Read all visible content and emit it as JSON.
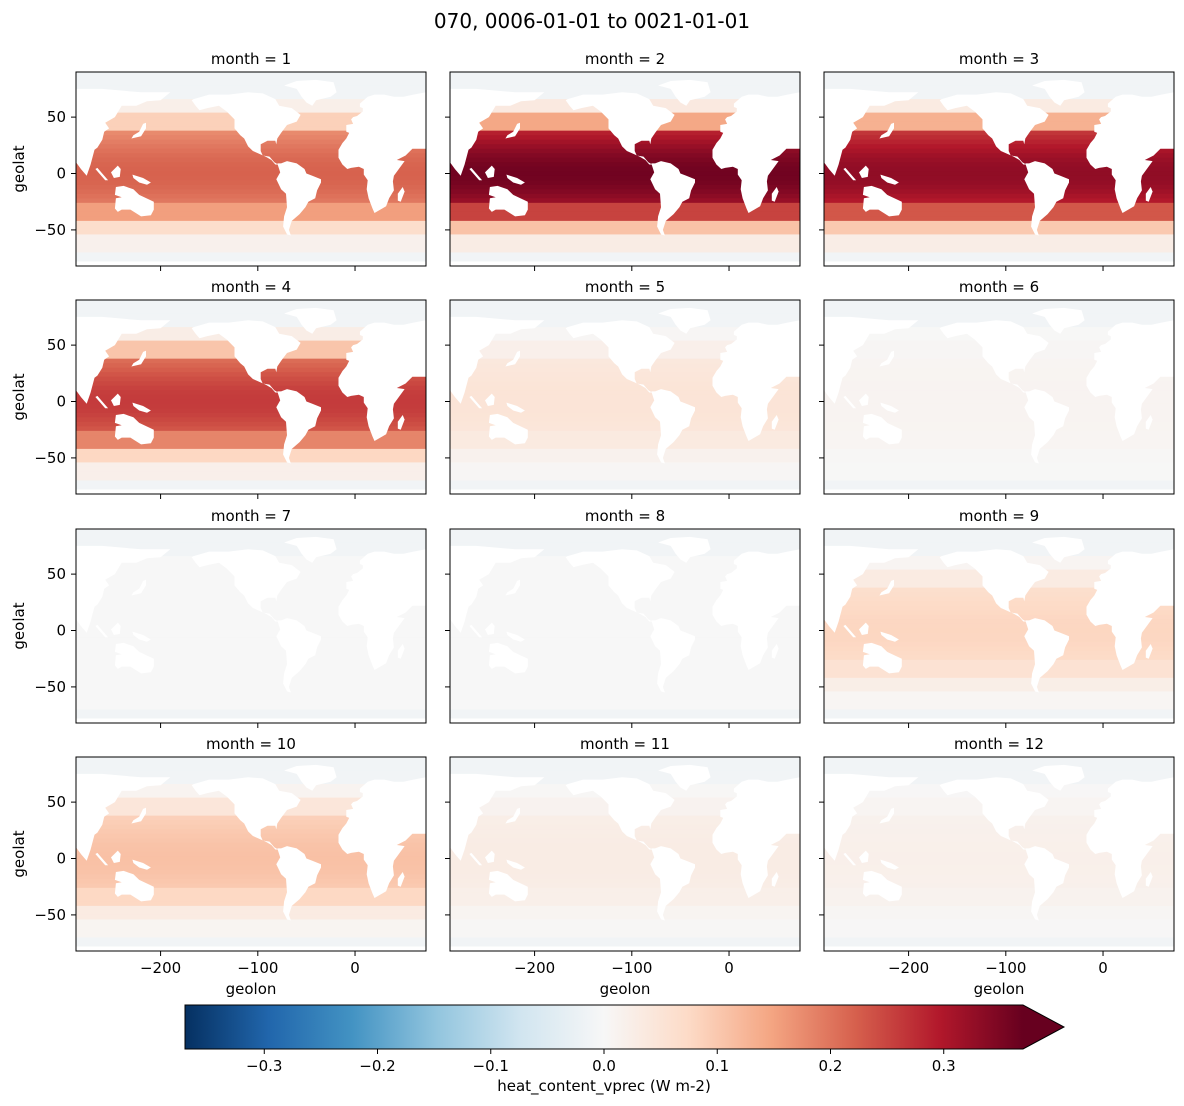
{
  "chart_data": {
    "type": "heatmap",
    "title": "070, 0006-01-01 to 0021-01-01",
    "xlabel": "geolon",
    "ylabel": "geolat",
    "xlim": [
      -287,
      73
    ],
    "ylim": [
      -82,
      90
    ],
    "xticks": [
      -200,
      -100,
      0
    ],
    "xtick_labels": [
      "−200",
      "−100",
      "0"
    ],
    "yticks": [
      50,
      0,
      -50
    ],
    "ytick_labels": [
      "50",
      "0",
      "−50"
    ],
    "panels": [
      {
        "title": "month = 1",
        "intensity": 0.22
      },
      {
        "title": "month = 2",
        "intensity": 0.36
      },
      {
        "title": "month = 3",
        "intensity": 0.33
      },
      {
        "title": "month = 4",
        "intensity": 0.26
      },
      {
        "title": "month = 5",
        "intensity": 0.05
      },
      {
        "title": "month = 6",
        "intensity": 0.01
      },
      {
        "title": "month = 7",
        "intensity": 0.0
      },
      {
        "title": "month = 8",
        "intensity": 0.0
      },
      {
        "title": "month = 9",
        "intensity": 0.08
      },
      {
        "title": "month = 10",
        "intensity": 0.11
      },
      {
        "title": "month = 11",
        "intensity": 0.03
      },
      {
        "title": "month = 12",
        "intensity": 0.02
      }
    ],
    "colorbar": {
      "label": "heat_content_vprec (W m-2)",
      "colormap": "RdBu_r",
      "vmin": -0.37,
      "vmax": 0.37,
      "extend": "max",
      "ticks": [
        -0.3,
        -0.2,
        -0.1,
        0.0,
        0.1,
        0.2,
        0.3
      ],
      "tick_labels": [
        "−0.3",
        "−0.2",
        "−0.1",
        "0.0",
        "0.1",
        "0.2",
        "0.3"
      ]
    },
    "colors": {
      "land": "#ffffff",
      "ocean_neutral": "#f5f5f5",
      "ocean_ice": "#e9eff3"
    }
  }
}
